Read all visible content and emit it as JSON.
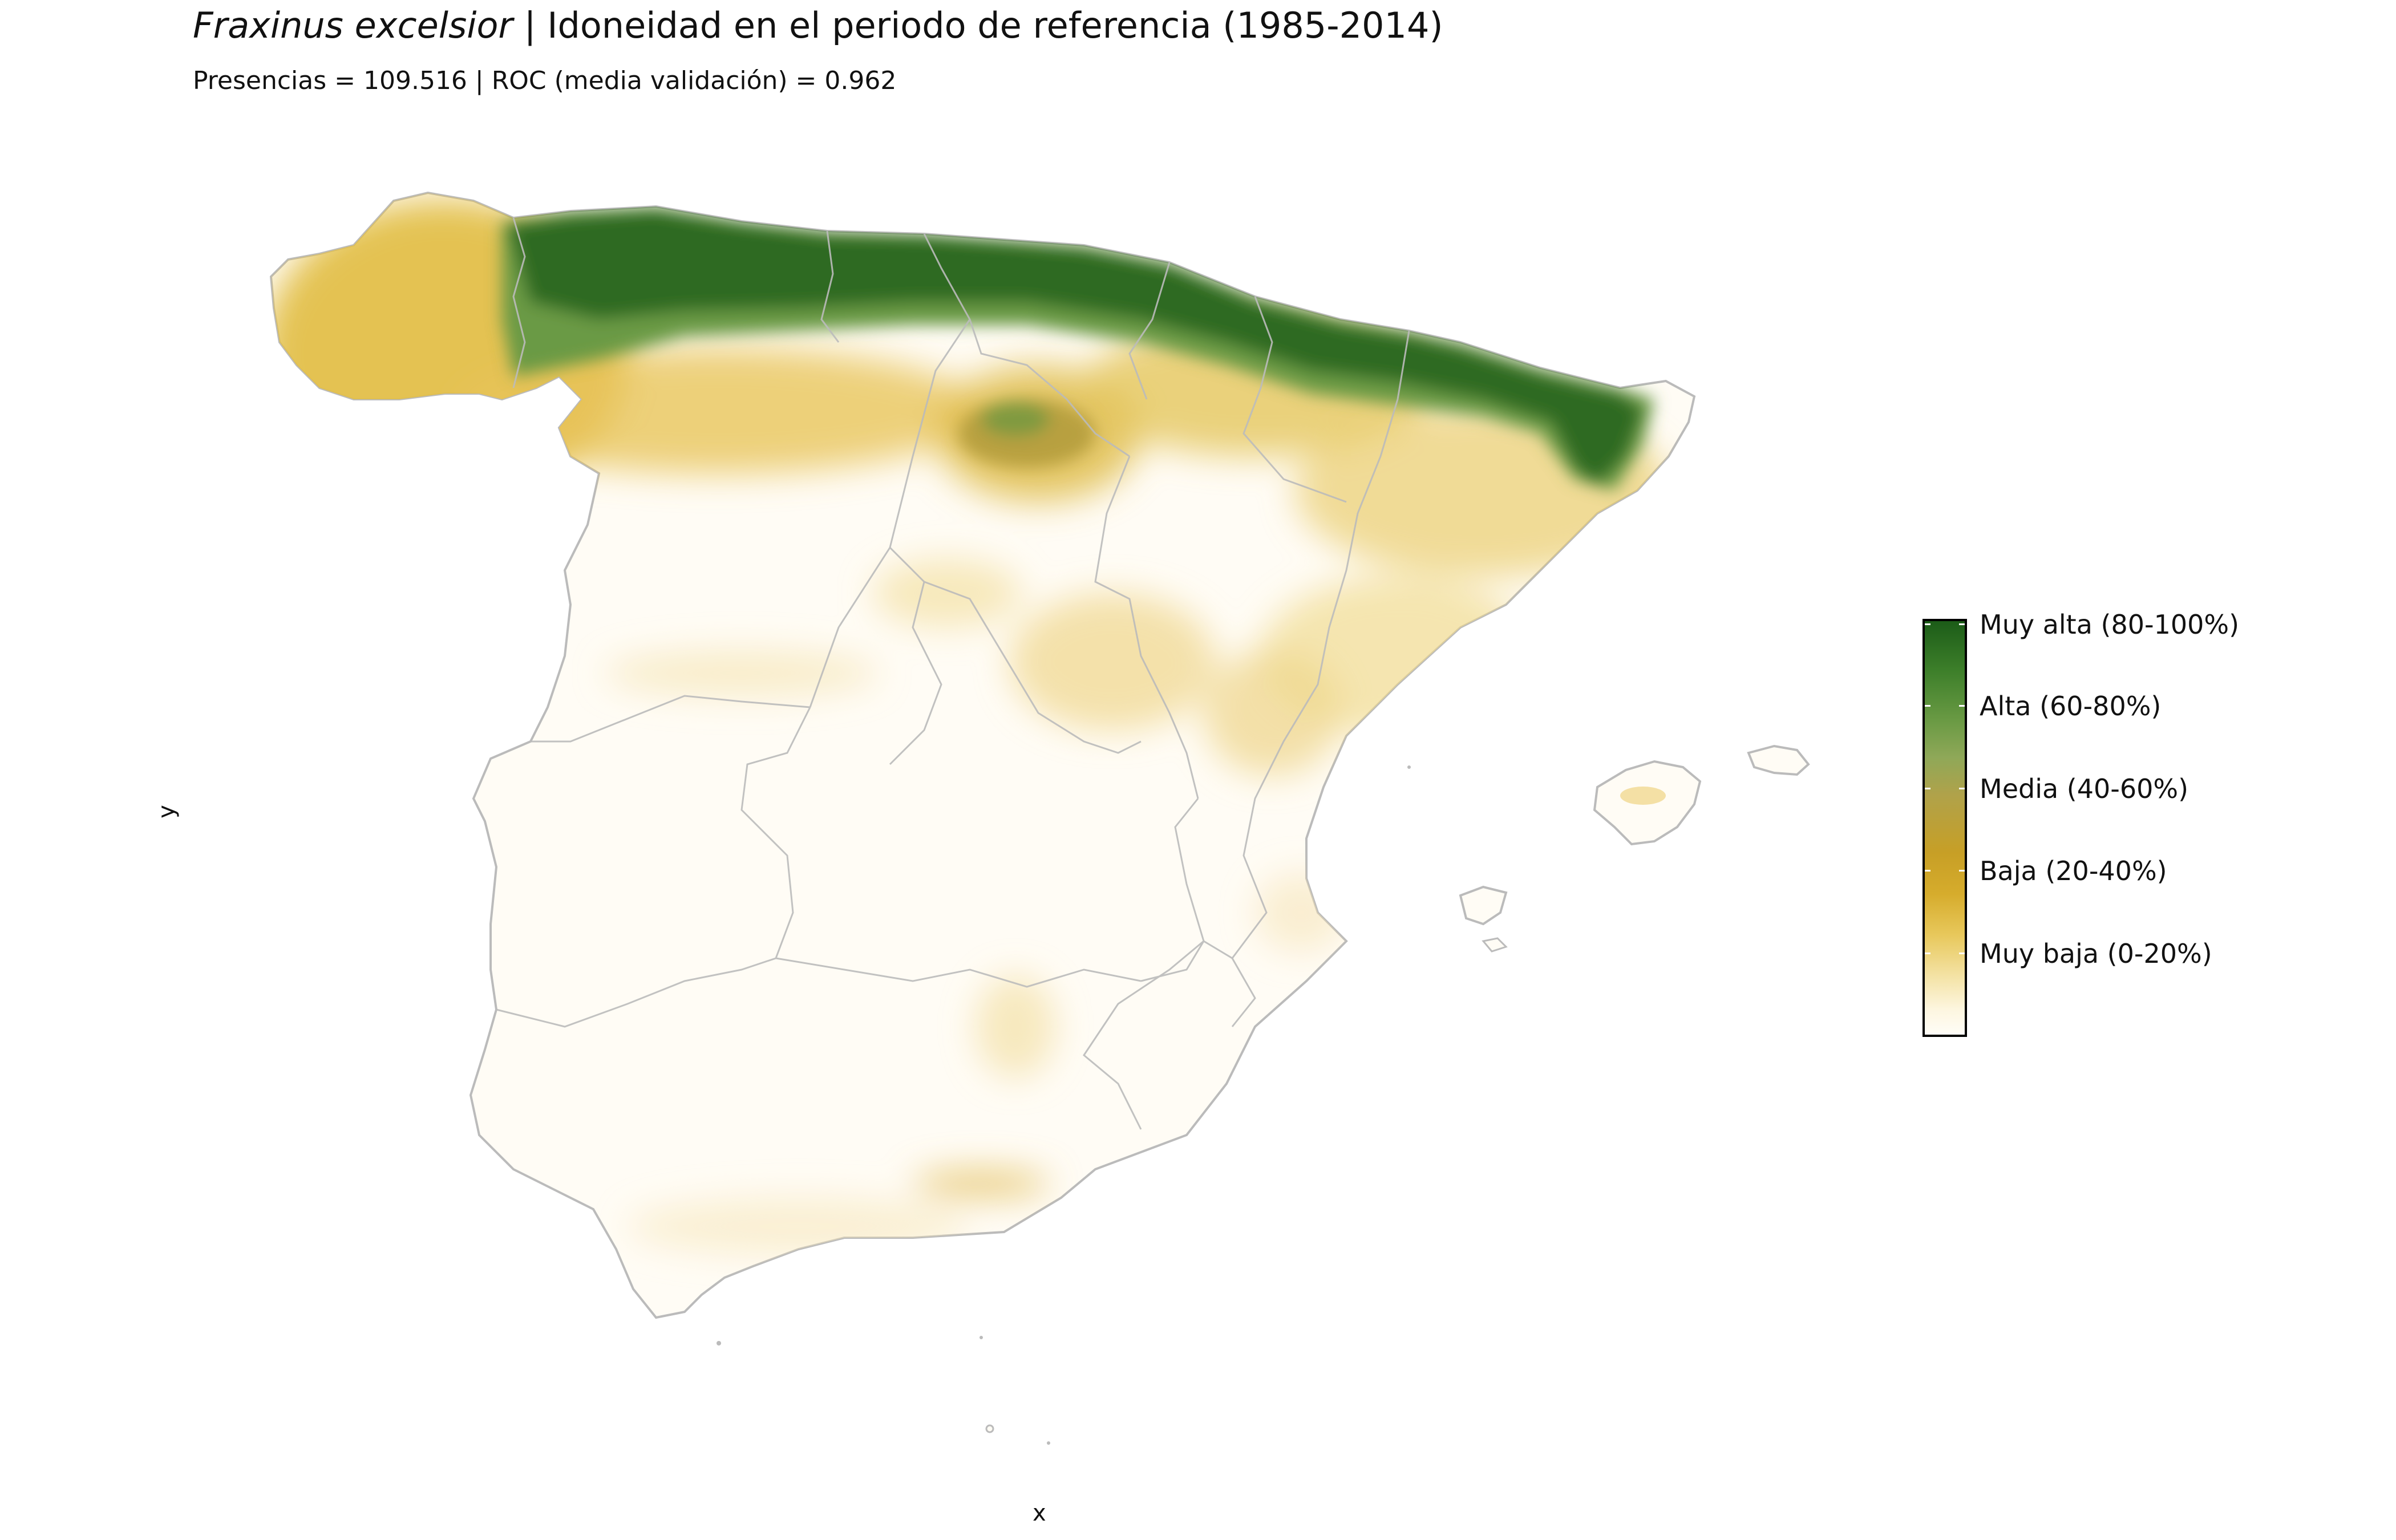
{
  "title": {
    "species": "Fraxinus excelsior",
    "rest": " | Idoneidad en el periodo de referencia (1985-2014)"
  },
  "subtitle": "Presencias = 109.516  |  ROC (media validación) = 0.962",
  "axes": {
    "x_label": "x",
    "y_label": "y"
  },
  "legend": {
    "items": [
      {
        "label": "Muy alta (80-100%)",
        "color": "#1c5c18"
      },
      {
        "label": "Alta (60-80%)",
        "color": "#6a9a44"
      },
      {
        "label": "Media (40-60%)",
        "color": "#b0a24a"
      },
      {
        "label": "Baja (20-40%)",
        "color": "#d6ac2c"
      },
      {
        "label": "Muy baja (0-20%)",
        "color": "#f4e3a6"
      }
    ]
  },
  "colors": {
    "map_base": "#fffcf5",
    "boundary": "#bbbbbb",
    "very_high": "#2d6a22",
    "high": "#6a9a44",
    "medium": "#b8a040",
    "low": "#dcb23c",
    "very_low": "#f3dc9a"
  }
}
